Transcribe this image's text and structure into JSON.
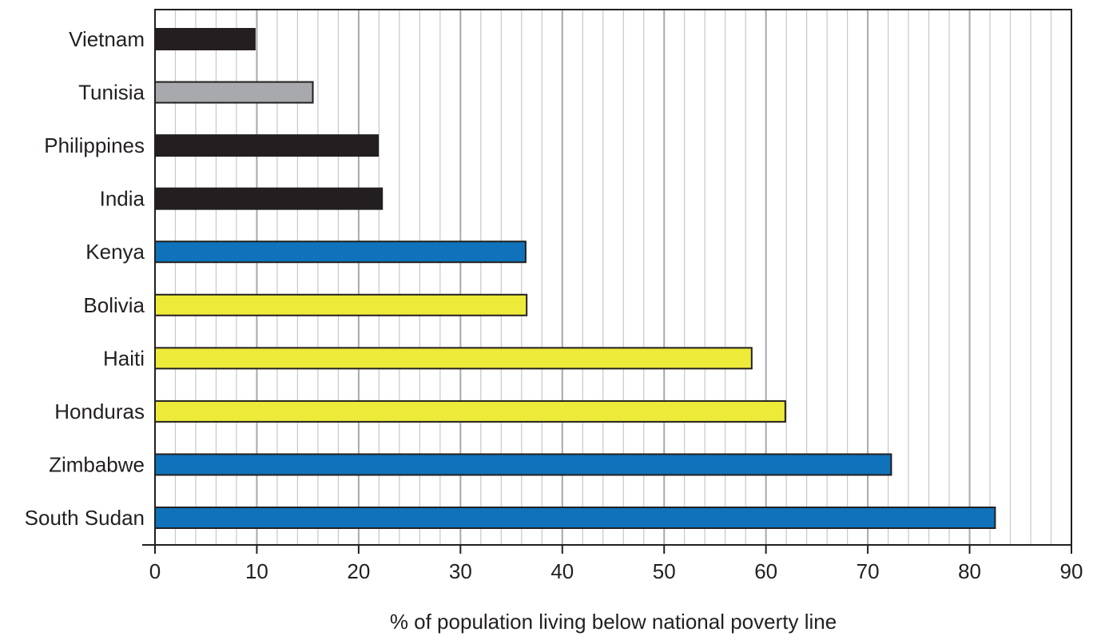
{
  "chart_data": {
    "type": "bar",
    "orientation": "horizontal",
    "xlabel": "% of population living below national poverty line",
    "ylabel": "",
    "xlim": [
      0,
      90
    ],
    "major_ticks": [
      0,
      10,
      20,
      30,
      40,
      50,
      60,
      70,
      80,
      90
    ],
    "minor_tick_step": 2,
    "grid": true,
    "categories": [
      "Vietnam",
      "Tunisia",
      "Philippines",
      "India",
      "Kenya",
      "Bolivia",
      "Haiti",
      "Honduras",
      "Zimbabwe",
      "South Sudan"
    ],
    "values": [
      9.8,
      15.5,
      21.9,
      22.3,
      36.4,
      36.5,
      58.6,
      61.9,
      72.3,
      82.5
    ],
    "bar_colors": [
      "#231f20",
      "#a7a9ac",
      "#231f20",
      "#231f20",
      "#0f72ba",
      "#eeea3a",
      "#eeea3a",
      "#eeea3a",
      "#0f72ba",
      "#0f72ba"
    ],
    "grid_major_color": "#a7a9ac",
    "grid_minor_color": "#c7c8ca",
    "axis_color": "#231f20"
  }
}
